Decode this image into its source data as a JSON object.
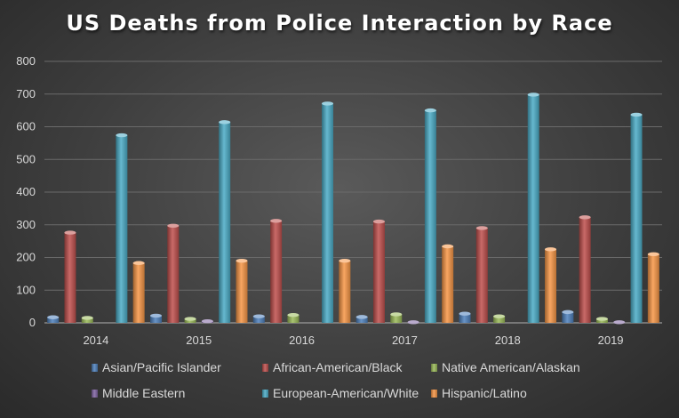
{
  "chart_data": {
    "type": "bar",
    "title": "US Deaths from Police Interaction by Race",
    "xlabel": "",
    "ylabel": "",
    "ylim": [
      0,
      800
    ],
    "yticks": [
      0,
      100,
      200,
      300,
      400,
      500,
      600,
      700,
      800
    ],
    "grid": true,
    "legend_position": "bottom",
    "categories": [
      "2014",
      "2015",
      "2016",
      "2017",
      "2018",
      "2019"
    ],
    "series": [
      {
        "name": "Asian/Pacific Islander",
        "color": "#4f81bd",
        "values": [
          17,
          22,
          20,
          18,
          28,
          33
        ]
      },
      {
        "name": "African-American/Black",
        "color": "#c0504d",
        "values": [
          276,
          297,
          312,
          310,
          290,
          323
        ]
      },
      {
        "name": "Native American/Alaskan",
        "color": "#9bbb59",
        "values": [
          15,
          12,
          24,
          26,
          20,
          12
        ]
      },
      {
        "name": "Middle Eastern",
        "color": "#8064a2",
        "values": [
          0,
          5,
          0,
          2,
          0,
          2
        ]
      },
      {
        "name": "European-American/White",
        "color": "#4bacc6",
        "values": [
          574,
          614,
          671,
          650,
          698,
          637
        ]
      },
      {
        "name": "Hispanic/Latino",
        "color": "#f79646",
        "values": [
          183,
          190,
          190,
          234,
          225,
          210
        ]
      }
    ]
  }
}
